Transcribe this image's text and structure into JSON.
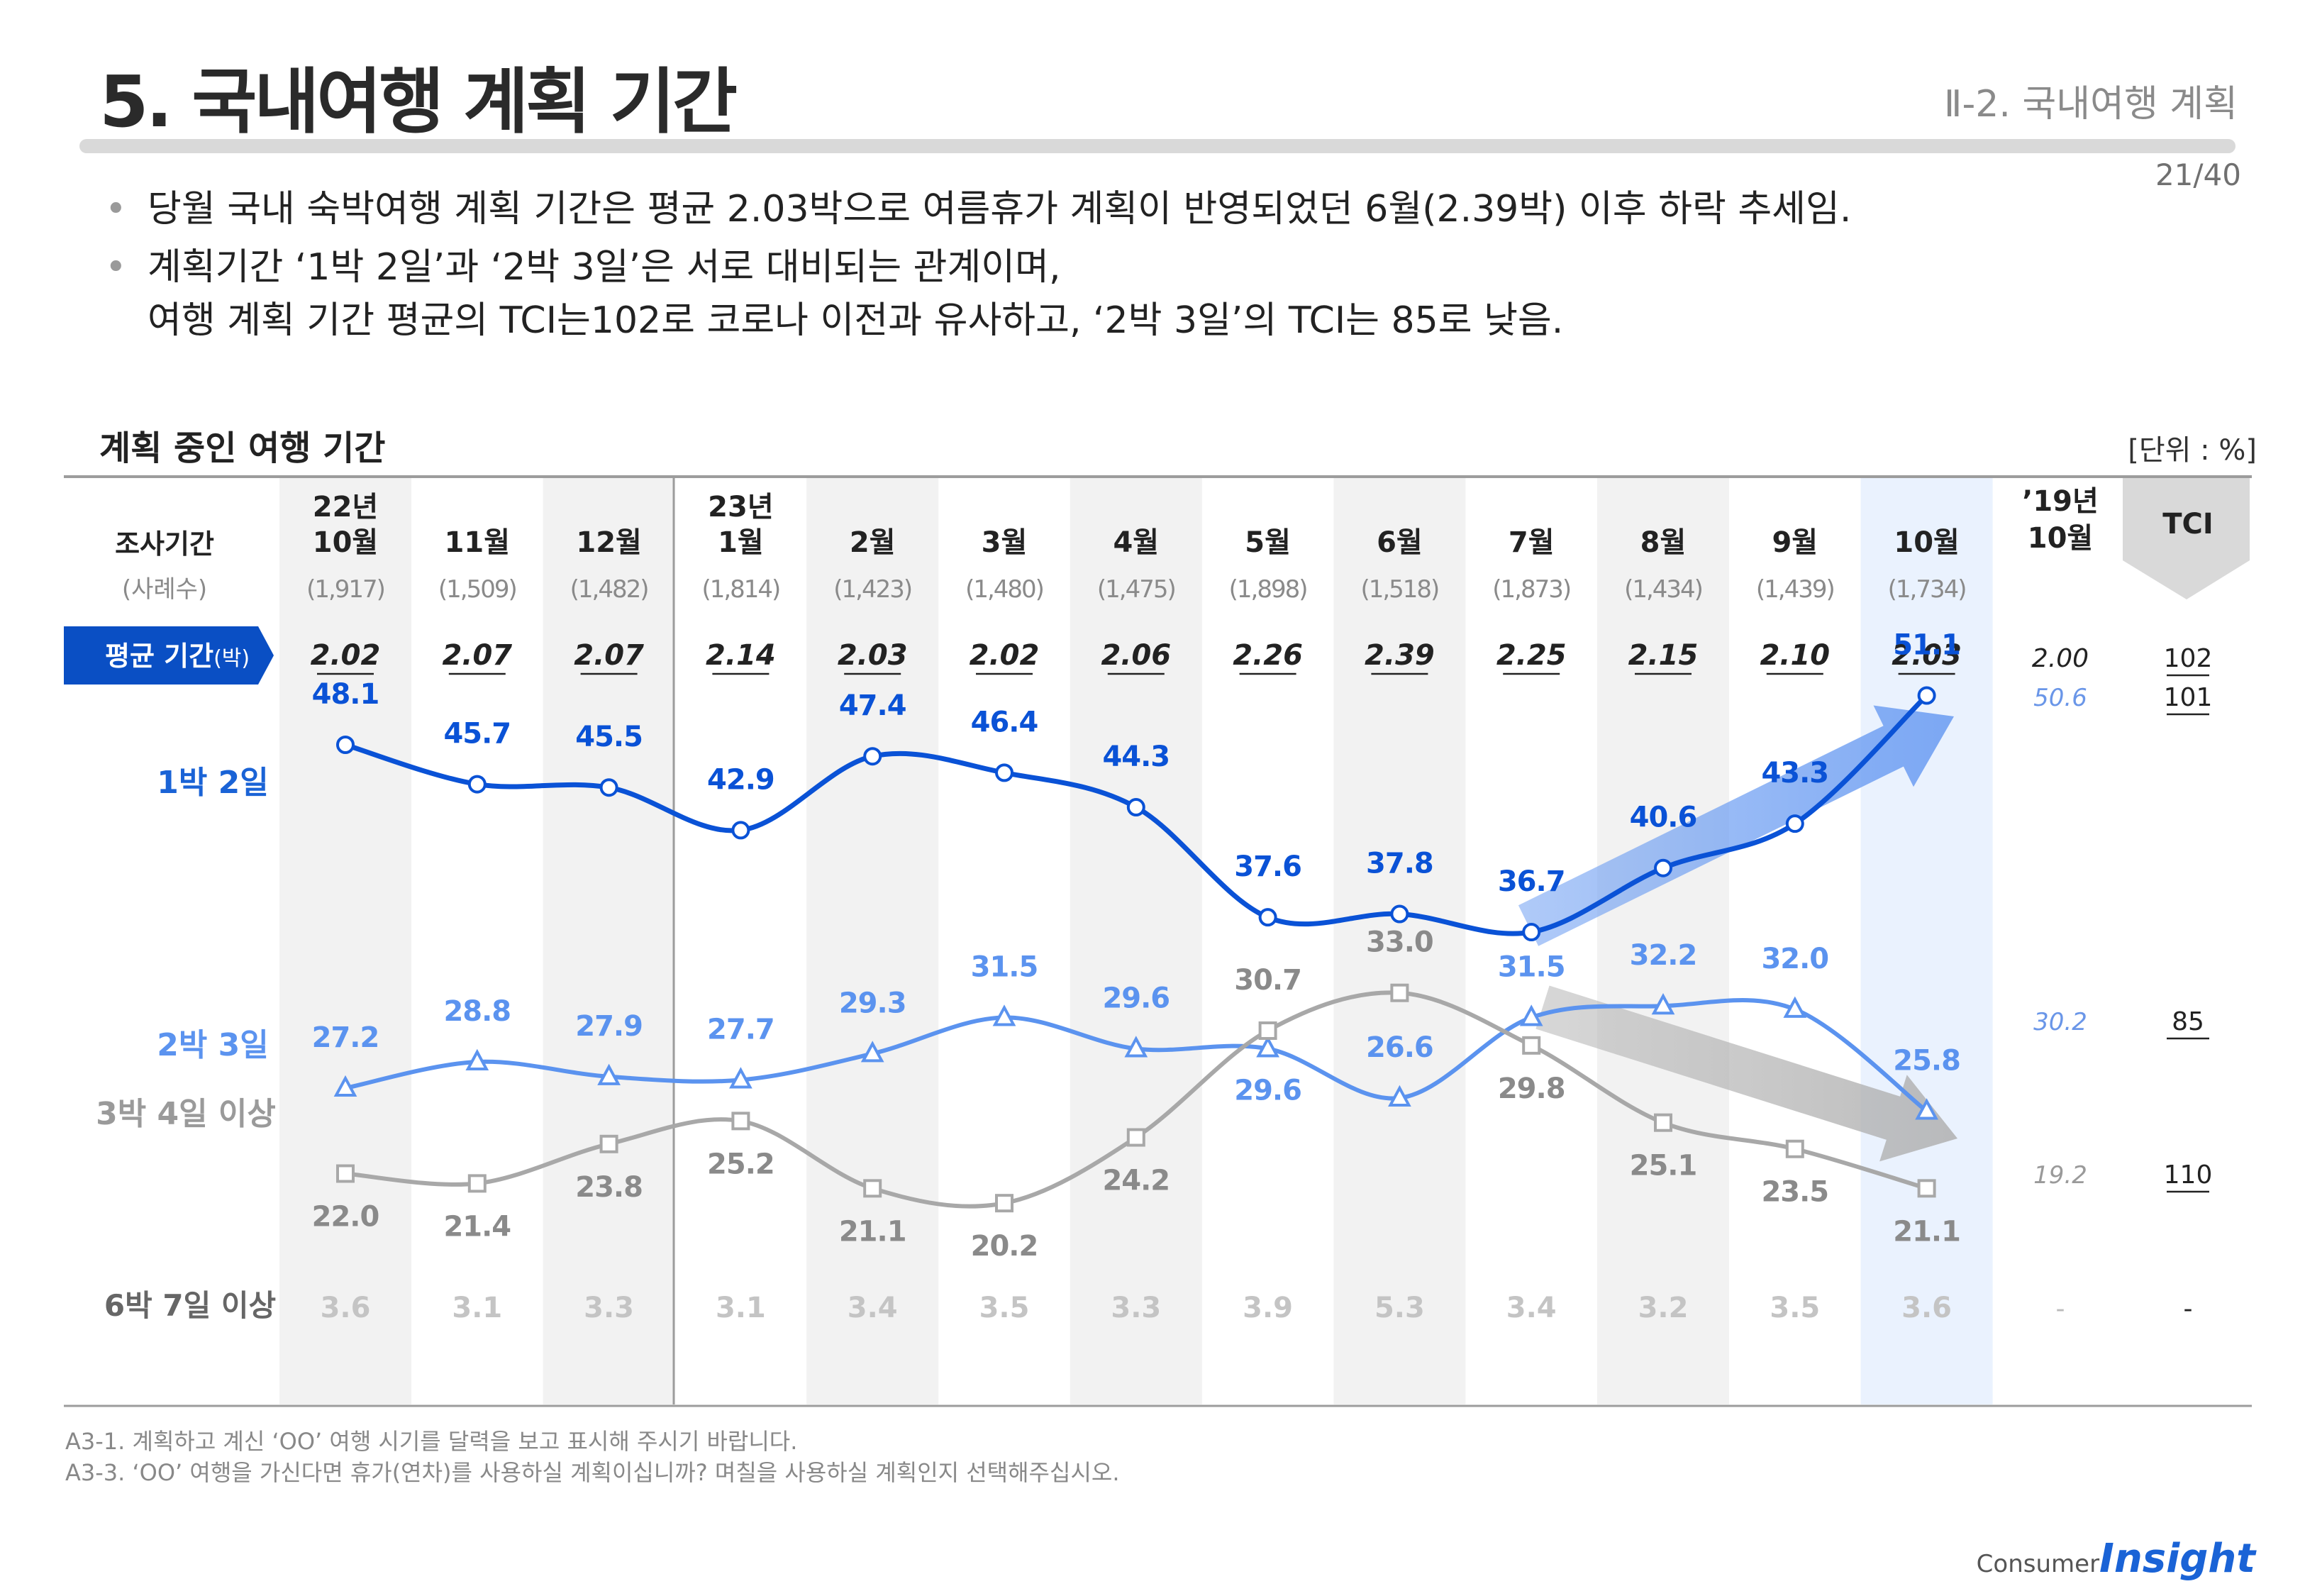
{
  "header": {
    "title": "5. 국내여행 계획 기간",
    "section": "Ⅱ-2. 국내여행 계획",
    "page_number": "21/40"
  },
  "bullets": [
    [
      "당월 국내 숙박여행 계획 기간은 평균 2.03박으로 여름휴가 계획이 반영되었던 6월(2.39박) 이후 하락 추세임."
    ],
    [
      "계획기간 ‘1박 2일’과 ‘2박 3일’은 서로 대비되는 관계이며,",
      "여행 계획 기간 평균의 TCI는102로 코로나 이전과 유사하고, ‘2박 3일’의 TCI는 85로 낮음."
    ]
  ],
  "footnotes": [
    "A3-1. 계획하고 계신 ‘OO’ 여행 시기를 달력을 보고 표시해 주시기 바랍니다.",
    "A3-3. ‘OO’ 여행을 가신다면 휴가(연차)를 사용하실 계획이십니까? 며칠을 사용하실 계획인지 선택해주십시오."
  ],
  "brand": {
    "prefix": "Consumer",
    "name": "Insight"
  },
  "chart_data": {
    "type": "line",
    "title": "계획 중인 여행 기간",
    "unit": "[단위 : %]",
    "row_header": {
      "label": "조사기간",
      "sublabel": "(사례수)"
    },
    "categories": [
      {
        "year": "22년",
        "month": "10월",
        "n": "(1,917)"
      },
      {
        "year": "",
        "month": "11월",
        "n": "(1,509)"
      },
      {
        "year": "",
        "month": "12월",
        "n": "(1,482)"
      },
      {
        "year": "23년",
        "month": "1월",
        "n": "(1,814)"
      },
      {
        "year": "",
        "month": "2월",
        "n": "(1,423)"
      },
      {
        "year": "",
        "month": "3월",
        "n": "(1,480)"
      },
      {
        "year": "",
        "month": "4월",
        "n": "(1,475)"
      },
      {
        "year": "",
        "month": "5월",
        "n": "(1,898)"
      },
      {
        "year": "",
        "month": "6월",
        "n": "(1,518)"
      },
      {
        "year": "",
        "month": "7월",
        "n": "(1,873)"
      },
      {
        "year": "",
        "month": "8월",
        "n": "(1,434)"
      },
      {
        "year": "",
        "month": "9월",
        "n": "(1,439)"
      },
      {
        "year": "",
        "month": "10월",
        "n": "(1,734)"
      }
    ],
    "average": {
      "label": "평균 기간",
      "unit": "(박)",
      "values": [
        "2.02",
        "2.07",
        "2.07",
        "2.14",
        "2.03",
        "2.02",
        "2.06",
        "2.26",
        "2.39",
        "2.25",
        "2.15",
        "2.10",
        "2.03"
      ],
      "ref_2019": "2.00",
      "tci": "102"
    },
    "series": [
      {
        "name": "1박 2일",
        "color": "#0a52d6",
        "marker": "circle",
        "values": [
          48.1,
          45.7,
          45.5,
          42.9,
          47.4,
          46.4,
          44.3,
          37.6,
          37.8,
          36.7,
          40.6,
          43.3,
          51.1
        ],
        "ref_2019": "50.6",
        "tci": "101"
      },
      {
        "name": "2박 3일",
        "color": "#5b93ef",
        "marker": "triangle",
        "values": [
          27.2,
          28.8,
          27.9,
          27.7,
          29.3,
          31.5,
          29.6,
          29.6,
          26.6,
          31.5,
          32.2,
          32.0,
          25.8
        ],
        "ref_2019": "30.2",
        "tci": "85"
      },
      {
        "name": "3박 4일 이상",
        "color": "#a8a8a8",
        "marker": "square",
        "values": [
          22.0,
          21.4,
          23.8,
          25.2,
          21.1,
          20.2,
          24.2,
          30.7,
          33.0,
          29.8,
          25.1,
          23.5,
          21.1
        ],
        "ref_2019": "19.2",
        "tci": "110"
      }
    ],
    "six_nights": {
      "label": "6박 7일 이상",
      "values": [
        "3.6",
        "3.1",
        "3.3",
        "3.1",
        "3.4",
        "3.5",
        "3.3",
        "3.9",
        "5.3",
        "3.4",
        "3.2",
        "3.5",
        "3.6"
      ],
      "ref_2019": "-",
      "tci": "-"
    },
    "ref_column": {
      "year": "’19년",
      "month": "10월"
    },
    "tci_column": {
      "label": "TCI"
    },
    "colors": {
      "nav_badge": "#0a4fc4",
      "highlight": "#eaf2fe",
      "band": "#f2f2f2",
      "tci_header": "#d9d9d9"
    }
  }
}
